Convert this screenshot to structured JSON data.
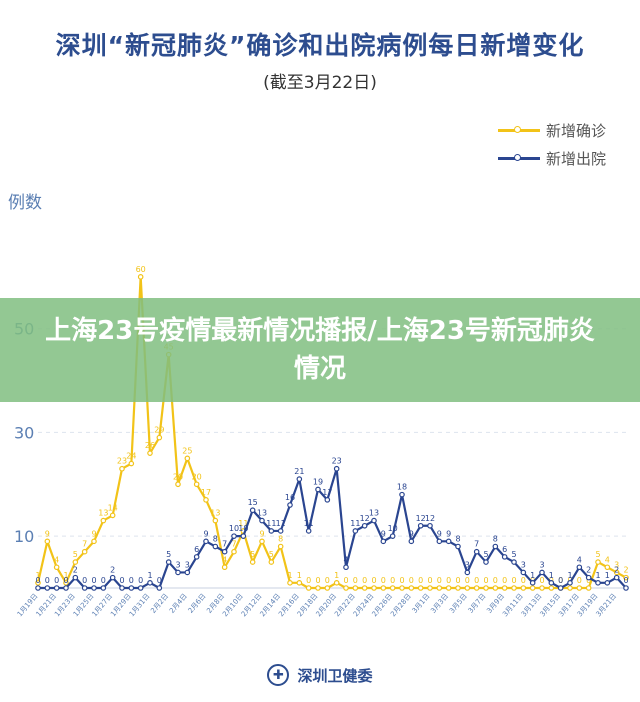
{
  "chart_data": {
    "type": "line",
    "title": "深圳“新冠肺炎”确诊和出院病例每日新增变化",
    "subtitle": "(截至3月22日)",
    "ylabel": "例数",
    "ylim": [
      0,
      70
    ],
    "yticks": [
      10,
      30,
      50
    ],
    "legend_position": "top-right",
    "x": [
      "1月19日",
      "1月20日",
      "1月21日",
      "1月22日",
      "1月23日",
      "1月24日",
      "1月25日",
      "1月26日",
      "1月27日",
      "1月28日",
      "1月29日",
      "1月30日",
      "1月31日",
      "2月1日",
      "2月2日",
      "2月3日",
      "2月4日",
      "2月5日",
      "2月6日",
      "2月7日",
      "2月8日",
      "2月9日",
      "2月10日",
      "2月11日",
      "2月12日",
      "2月13日",
      "2月14日",
      "2月15日",
      "2月16日",
      "2月17日",
      "2月18日",
      "2月19日",
      "2月20日",
      "2月21日",
      "2月22日",
      "2月23日",
      "2月24日",
      "2月25日",
      "2月26日",
      "2月27日",
      "2月28日",
      "2月29日",
      "3月1日",
      "3月2日",
      "3月3日",
      "3月4日",
      "3月5日",
      "3月6日",
      "3月7日",
      "3月8日",
      "3月9日",
      "3月10日",
      "3月11日",
      "3月12日",
      "3月13日",
      "3月14日",
      "3月15日",
      "3月16日",
      "3月17日",
      "3月18日",
      "3月19日",
      "3月20日",
      "3月21日",
      "3月22日"
    ],
    "xtick_labels": [
      "1月19日",
      "1月21日",
      "1月23日",
      "1月25日",
      "1月27日",
      "1月29日",
      "1月31日",
      "2月2日",
      "2月4日",
      "2月6日",
      "2月8日",
      "2月10日",
      "2月12日",
      "2月14日",
      "2月16日",
      "2月18日",
      "2月20日",
      "2月22日",
      "2月24日",
      "2月26日",
      "2月28日",
      "3月1日",
      "3月3日",
      "3月5日",
      "3月7日",
      "3月9日",
      "3月11日",
      "3月13日",
      "3月15日",
      "3月17日",
      "3月19日",
      "3月21日"
    ],
    "series": [
      {
        "name": "新增确诊",
        "color": "#f2c318",
        "values": [
          1,
          9,
          4,
          1,
          5,
          7,
          9,
          13,
          14,
          23,
          24,
          60,
          26,
          29,
          45,
          20,
          25,
          20,
          17,
          13,
          4,
          7,
          11,
          5,
          9,
          5,
          8,
          1,
          1,
          0,
          0,
          0,
          1,
          0,
          0,
          0,
          0,
          0,
          0,
          0,
          0,
          0,
          0,
          0,
          0,
          0,
          0,
          0,
          0,
          0,
          0,
          0,
          0,
          0,
          0,
          0,
          0,
          0,
          0,
          0,
          5,
          4,
          3,
          2
        ]
      },
      {
        "name": "新增出院",
        "color": "#2a4590",
        "values": [
          0,
          0,
          0,
          0,
          2,
          0,
          0,
          0,
          2,
          0,
          0,
          0,
          1,
          0,
          5,
          3,
          3,
          6,
          9,
          8,
          7,
          10,
          10,
          15,
          13,
          11,
          11,
          16,
          21,
          11,
          19,
          17,
          23,
          4,
          11,
          12,
          13,
          9,
          10,
          18,
          9,
          12,
          12,
          9,
          9,
          8,
          3,
          7,
          5,
          8,
          6,
          5,
          3,
          1,
          3,
          1,
          0,
          1,
          4,
          2,
          1,
          1,
          2,
          0
        ]
      }
    ]
  },
  "banner": {
    "headline": "上海23号疫情最新情况播报/上海23号新冠肺炎情况"
  },
  "footer": {
    "org_name": "深圳卫健委"
  }
}
